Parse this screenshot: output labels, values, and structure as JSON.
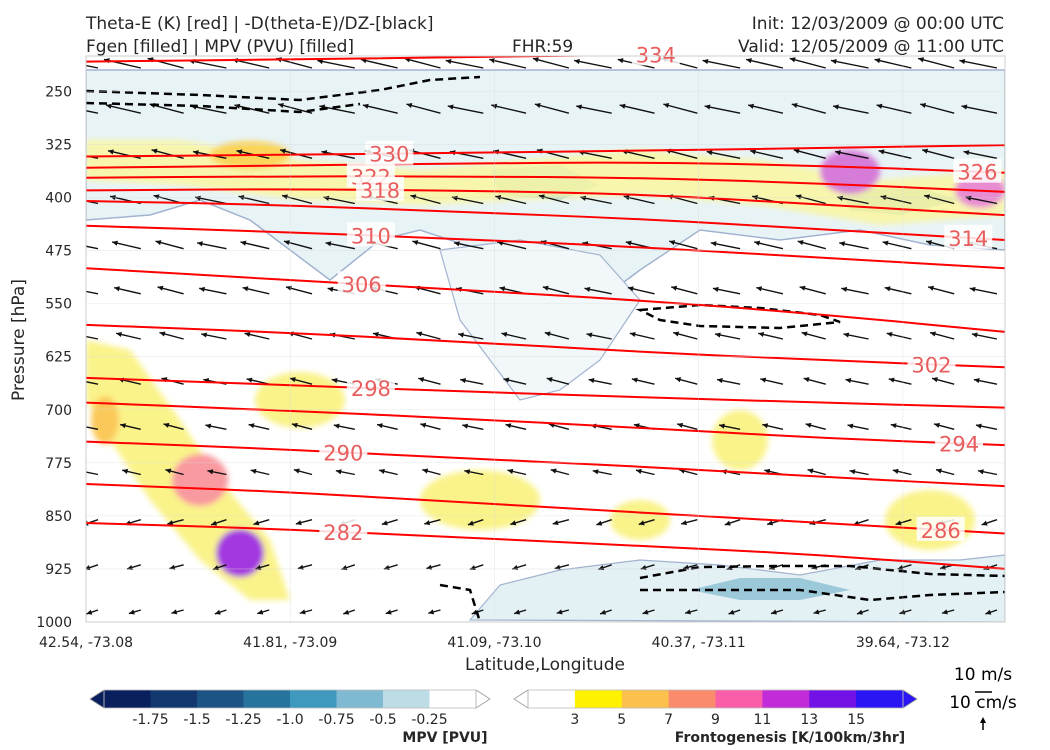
{
  "header": {
    "title_left_1": "Theta-E (K) [red] | -D(theta-E)/DZ-[black]",
    "title_left_2": "Fgen [filled] | MPV (PVU) [filled]",
    "fhr": "FHR:59",
    "init": "Init: 12/03/2009 @ 00:00 UTC",
    "valid": "Valid: 12/05/2009 @ 11:00 UTC"
  },
  "chart_data": {
    "type": "cross-section",
    "xlabel": "Latitude,Longitude",
    "ylabel": "Pressure [hPa]",
    "x_ticks": [
      "42.54, -73.08",
      "41.81, -73.09",
      "41.09, -73.10",
      "40.37, -73.11",
      "39.64, -73.12"
    ],
    "y_ticks": [
      250,
      325,
      400,
      475,
      550,
      625,
      700,
      775,
      850,
      925,
      1000
    ],
    "ylim": [
      1000,
      200
    ],
    "grid": true,
    "theta_e_contours": [
      {
        "label": "334",
        "y": [
          208,
          205,
          202,
          198,
          195,
          193
        ]
      },
      {
        "label": "330",
        "y": [
          342,
          340,
          337,
          334,
          330,
          326
        ]
      },
      {
        "label": "326",
        "y": [
          358,
          355,
          352,
          350,
          355,
          365
        ]
      },
      {
        "label": "322",
        "y": [
          372,
          370,
          370,
          372,
          380,
          392
        ]
      },
      {
        "label": "318",
        "y": [
          390,
          388,
          390,
          395,
          410,
          425
        ]
      },
      {
        "label": "310",
        "y": [
          440,
          448,
          458,
          470,
          485,
          500
        ]
      },
      {
        "label": "314",
        "y": [
          405,
          410,
          420,
          430,
          445,
          460
        ]
      },
      {
        "label": "306",
        "y": [
          500,
          515,
          530,
          545,
          565,
          590
        ]
      },
      {
        "label": "302",
        "y": [
          580,
          590,
          603,
          618,
          630,
          640
        ]
      },
      {
        "label": "298",
        "y": [
          655,
          664,
          674,
          682,
          690,
          697
        ]
      },
      {
        "label": "294",
        "y": [
          690,
          700,
          712,
          725,
          740,
          750
        ]
      },
      {
        "label": "290",
        "y": [
          745,
          755,
          768,
          780,
          795,
          808
        ]
      },
      {
        "label": "286",
        "y": [
          805,
          815,
          830,
          845,
          860,
          875
        ]
      },
      {
        "label": "282",
        "y": [
          860,
          868,
          880,
          892,
          905,
          925
        ]
      }
    ],
    "contour_labels_shown": [
      "334",
      "330",
      "322",
      "318",
      "326",
      "310",
      "314",
      "306",
      "298",
      "302",
      "290",
      "294",
      "282",
      "286"
    ],
    "wind_reference": {
      "horizontal": "10 m/s",
      "vertical": "10 cm/s"
    }
  },
  "colorbars": {
    "mpv": {
      "title": "MPV [PVU]",
      "tick_labels": [
        "-1.75",
        "-1.5",
        "-1.25",
        "-1.0",
        "-0.75",
        "-0.5",
        "-0.25"
      ],
      "colors": [
        "#0a1f5e",
        "#12386f",
        "#1c5486",
        "#26739e",
        "#3f98bd",
        "#7fb9d2",
        "#bcdce6",
        "#ffffff"
      ]
    },
    "fgen": {
      "title": "Frontogenesis [K/100km/3hr]",
      "tick_labels": [
        "3",
        "5",
        "7",
        "9",
        "11",
        "13",
        "15"
      ],
      "colors": [
        "#ffffff",
        "#fff200",
        "#fcc04c",
        "#fa8c6c",
        "#fb5ea8",
        "#c22cd8",
        "#7312e6",
        "#2a16f5"
      ]
    }
  },
  "wind_legend": {
    "horizontal": "10 m/s",
    "vertical": "10 cm/s"
  },
  "colors": {
    "theta_e": "#ff0000",
    "theta_e_label": "#e85d5d",
    "gradient_neg": "#000000",
    "mpv_outline": "#9aaac8"
  }
}
